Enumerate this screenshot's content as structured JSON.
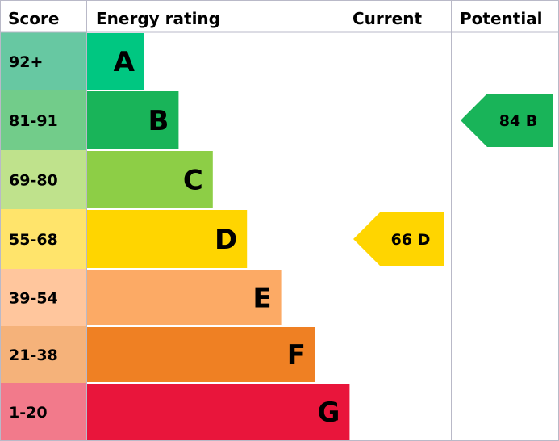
{
  "headers": {
    "score": "Score",
    "rating": "Energy rating",
    "current": "Current",
    "potential": "Potential"
  },
  "chart_data": {
    "type": "bar",
    "bands": [
      {
        "score": "92+",
        "letter": "A",
        "score_color": "#67c8a2",
        "bar_color": "#00c781",
        "relative_length": 1
      },
      {
        "score": "81-91",
        "letter": "B",
        "score_color": "#72cc8a",
        "bar_color": "#19b459",
        "relative_length": 2
      },
      {
        "score": "69-80",
        "letter": "C",
        "score_color": "#bfe28c",
        "bar_color": "#8dce46",
        "relative_length": 3
      },
      {
        "score": "55-68",
        "letter": "D",
        "score_color": "#ffe46b",
        "bar_color": "#ffd500",
        "relative_length": 4
      },
      {
        "score": "39-54",
        "letter": "E",
        "score_color": "#ffc69d",
        "bar_color": "#fcaa65",
        "relative_length": 5
      },
      {
        "score": "21-38",
        "letter": "F",
        "score_color": "#f5b27a",
        "bar_color": "#ef8023",
        "relative_length": 6
      },
      {
        "score": "1-20",
        "letter": "G",
        "score_color": "#f27a8b",
        "bar_color": "#e9153b",
        "relative_length": 7
      }
    ],
    "current": {
      "value": 66,
      "letter": "D",
      "label": "66 D",
      "color": "#ffd500"
    },
    "potential": {
      "value": 84,
      "letter": "B",
      "label": "84 B",
      "color": "#19b459"
    }
  }
}
